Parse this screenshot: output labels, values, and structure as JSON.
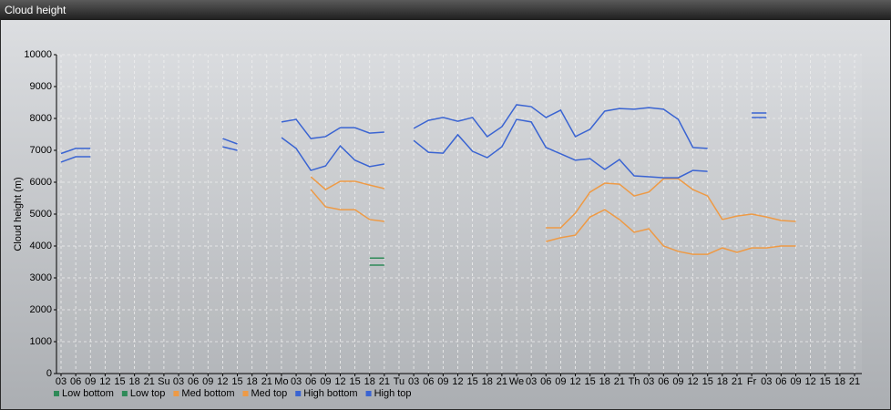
{
  "window_title": "Cloud height",
  "chart_data": {
    "type": "line",
    "y_label": "Cloud height (m)",
    "categories": [
      "03",
      "06",
      "09",
      "12",
      "15",
      "18",
      "21",
      "Su",
      "03",
      "06",
      "09",
      "12",
      "15",
      "18",
      "21",
      "Mo",
      "03",
      "06",
      "09",
      "12",
      "15",
      "18",
      "21",
      "Tu",
      "03",
      "06",
      "09",
      "12",
      "15",
      "18",
      "21",
      "We",
      "03",
      "06",
      "09",
      "12",
      "15",
      "18",
      "21",
      "Th",
      "03",
      "06",
      "09",
      "12",
      "15",
      "18",
      "21",
      "Fr",
      "03",
      "06",
      "09",
      "12",
      "15",
      "18",
      "21"
    ],
    "ylim": [
      0,
      10000
    ],
    "yticks": [
      0,
      1000,
      2000,
      3000,
      4000,
      5000,
      6000,
      7000,
      8000,
      9000,
      10000
    ],
    "grid": true,
    "legend": "bottom-left",
    "series": [
      {
        "name": "Low bottom",
        "color": "#2f8a58",
        "values": [
          null,
          null,
          null,
          null,
          null,
          null,
          null,
          null,
          null,
          null,
          null,
          null,
          null,
          null,
          null,
          null,
          null,
          null,
          null,
          null,
          null,
          3400,
          3400,
          null,
          null,
          null,
          null,
          null,
          null,
          null,
          null,
          null,
          null,
          null,
          null,
          null,
          null,
          null,
          null,
          null,
          null,
          null,
          null,
          null,
          null,
          null,
          null,
          null,
          null,
          null,
          null,
          null,
          null,
          null,
          null
        ]
      },
      {
        "name": "Low top",
        "color": "#2f8a58",
        "values": [
          null,
          null,
          null,
          null,
          null,
          null,
          null,
          null,
          null,
          null,
          null,
          null,
          null,
          null,
          null,
          null,
          null,
          null,
          null,
          null,
          null,
          3620,
          3620,
          null,
          null,
          null,
          null,
          null,
          null,
          null,
          null,
          null,
          null,
          null,
          null,
          null,
          null,
          null,
          null,
          null,
          null,
          null,
          null,
          null,
          null,
          null,
          null,
          null,
          null,
          null,
          null,
          null,
          null,
          null,
          null
        ]
      },
      {
        "name": "Med bottom",
        "color": "#ee9a45",
        "values": [
          null,
          null,
          null,
          null,
          null,
          null,
          null,
          null,
          null,
          null,
          null,
          null,
          null,
          null,
          null,
          null,
          null,
          5770,
          5230,
          5140,
          5140,
          4830,
          4770,
          null,
          null,
          null,
          null,
          null,
          null,
          null,
          null,
          null,
          null,
          4140,
          4260,
          4340,
          4910,
          5140,
          4830,
          4430,
          4540,
          4000,
          3830,
          3740,
          3740,
          3940,
          3800,
          3940,
          3940,
          4000,
          4000,
          null,
          null,
          null,
          null
        ]
      },
      {
        "name": "Med top",
        "color": "#ee9a45",
        "values": [
          null,
          null,
          null,
          null,
          null,
          null,
          null,
          null,
          null,
          null,
          null,
          null,
          null,
          null,
          null,
          null,
          null,
          6170,
          5770,
          6030,
          6030,
          5910,
          5800,
          null,
          null,
          null,
          null,
          null,
          null,
          null,
          null,
          null,
          null,
          4570,
          4570,
          5030,
          5690,
          5970,
          5940,
          5570,
          5690,
          6110,
          6110,
          5770,
          5570,
          4830,
          4940,
          5000,
          4910,
          4800,
          4770,
          null,
          null,
          null,
          null
        ]
      },
      {
        "name": "High bottom",
        "color": "#3a64d2",
        "values": [
          6630,
          6800,
          6800,
          null,
          null,
          null,
          null,
          null,
          null,
          null,
          null,
          7110,
          7000,
          null,
          null,
          7400,
          7060,
          6370,
          6510,
          7140,
          6690,
          6490,
          6570,
          null,
          7310,
          6940,
          6910,
          7490,
          6970,
          6770,
          7110,
          7970,
          7890,
          7090,
          6890,
          6690,
          6740,
          6400,
          6710,
          6200,
          6170,
          6140,
          6140,
          6370,
          6340,
          null,
          null,
          8030,
          8030,
          null,
          null,
          null,
          null,
          null,
          null
        ]
      },
      {
        "name": "High top",
        "color": "#3a64d2",
        "values": [
          6900,
          7060,
          7060,
          null,
          null,
          null,
          null,
          null,
          null,
          null,
          null,
          7370,
          7200,
          null,
          null,
          7890,
          7970,
          7370,
          7430,
          7710,
          7710,
          7540,
          7570,
          null,
          7690,
          7940,
          8030,
          7910,
          8030,
          7430,
          7740,
          8430,
          8370,
          8030,
          8260,
          7430,
          7660,
          8230,
          8310,
          8290,
          8340,
          8290,
          7970,
          7090,
          7060,
          null,
          null,
          8170,
          8170,
          null,
          null,
          null,
          null,
          null,
          null
        ]
      }
    ]
  }
}
